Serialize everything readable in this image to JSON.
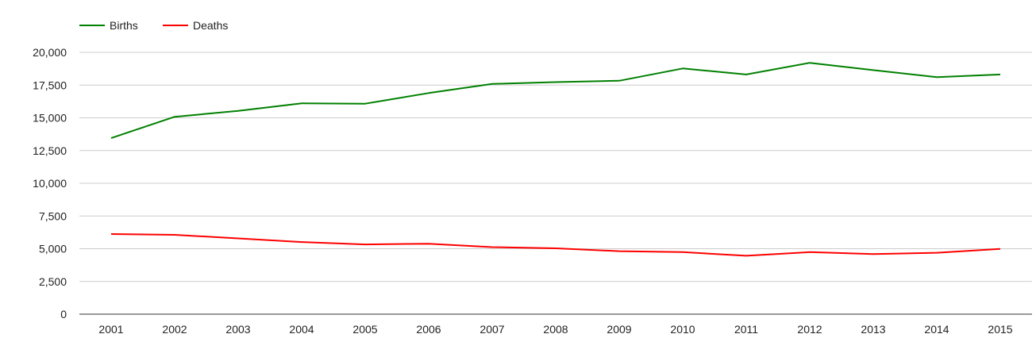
{
  "chart_data": {
    "type": "line",
    "title": "",
    "xlabel": "",
    "ylabel": "",
    "ylim": [
      0,
      20000
    ],
    "y_ticks": [
      0,
      2500,
      5000,
      7500,
      10000,
      12500,
      15000,
      17500,
      20000
    ],
    "y_tick_labels": [
      "0",
      "2,500",
      "5,000",
      "7,500",
      "10,000",
      "12,500",
      "15,000",
      "17,500",
      "20,000"
    ],
    "grid": true,
    "legend_position": "top-left",
    "categories": [
      "2001",
      "2002",
      "2003",
      "2004",
      "2005",
      "2006",
      "2007",
      "2008",
      "2009",
      "2010",
      "2011",
      "2012",
      "2013",
      "2014",
      "2015"
    ],
    "series": [
      {
        "name": "Births",
        "color": "#008000",
        "values": [
          13450,
          15080,
          15530,
          16110,
          16080,
          16890,
          17590,
          17730,
          17830,
          18770,
          18310,
          19200,
          18640,
          18110,
          18310
        ]
      },
      {
        "name": "Deaths",
        "color": "#ff0000",
        "values": [
          6120,
          6060,
          5790,
          5510,
          5330,
          5380,
          5120,
          5030,
          4810,
          4740,
          4460,
          4740,
          4590,
          4690,
          4990
        ]
      }
    ]
  }
}
